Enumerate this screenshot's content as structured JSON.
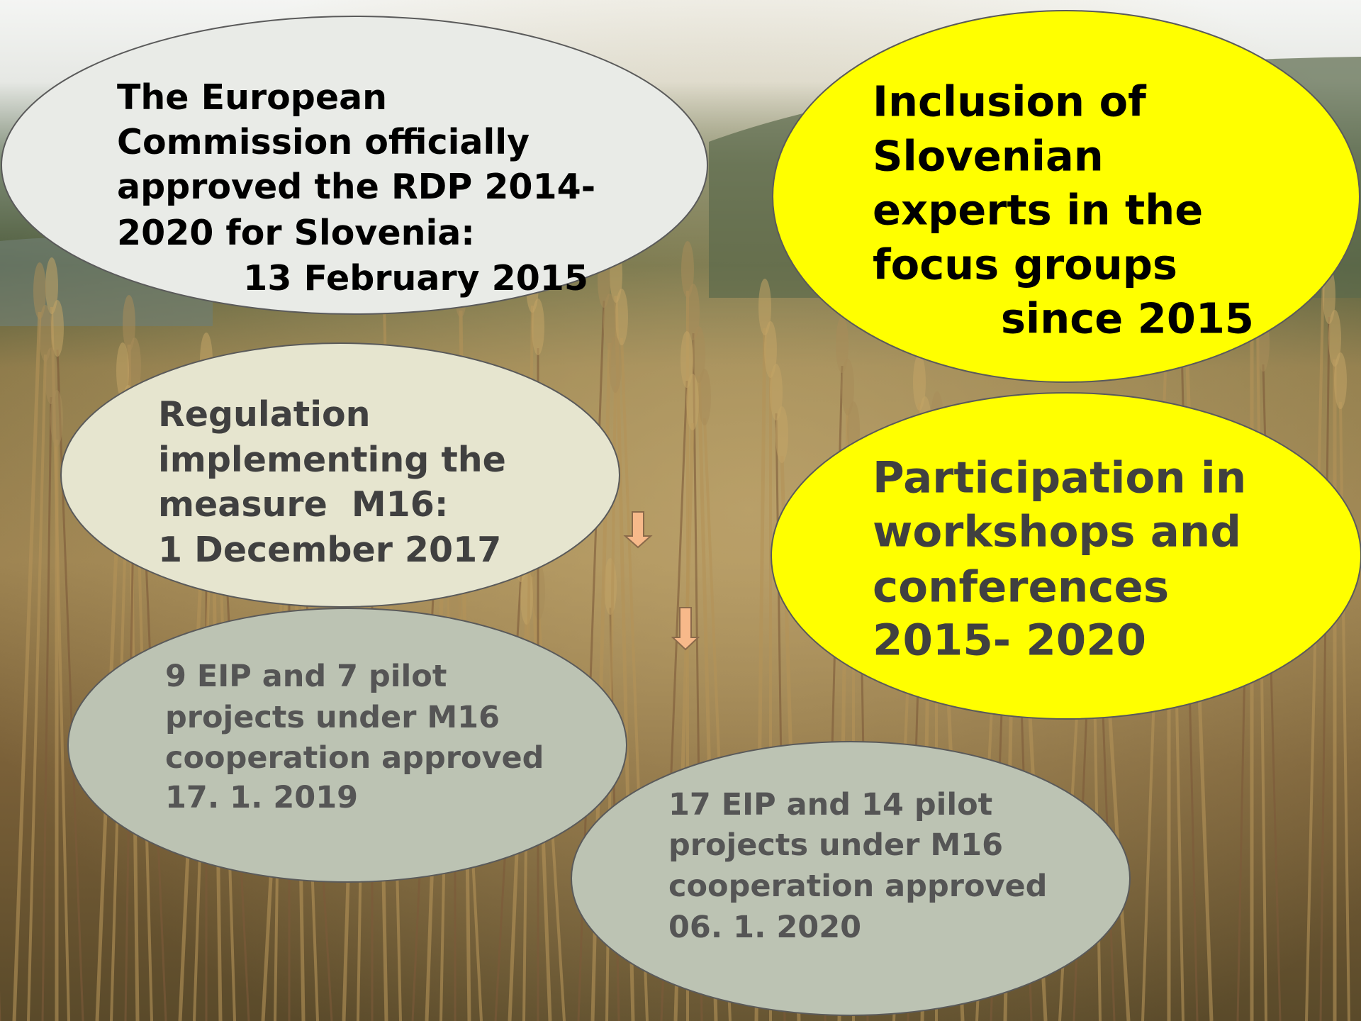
{
  "bubbles": [
    {
      "lines": [
        "The European",
        "Commission officially",
        "approved the RDP 2014-",
        "2020 for Slovenia:",
        "13 February 2015"
      ]
    },
    {
      "lines": [
        "Inclusion of",
        "Slovenian",
        "experts in the",
        "focus groups",
        "since 2015"
      ]
    },
    {
      "lines": [
        "Regulation",
        "implementing the",
        "measure  M16:",
        "1 December 2017"
      ]
    },
    {
      "lines": [
        "Participation in",
        "workshops and",
        "conferences",
        "2015- 2020"
      ]
    },
    {
      "lines": [
        "9 EIP and 7 pilot",
        "projects under M16",
        "cooperation approved",
        "17. 1. 2019"
      ]
    },
    {
      "lines": [
        "17 EIP and 14 pilot",
        "projects under M16",
        "cooperation approved",
        "06. 1. 2020"
      ]
    }
  ]
}
